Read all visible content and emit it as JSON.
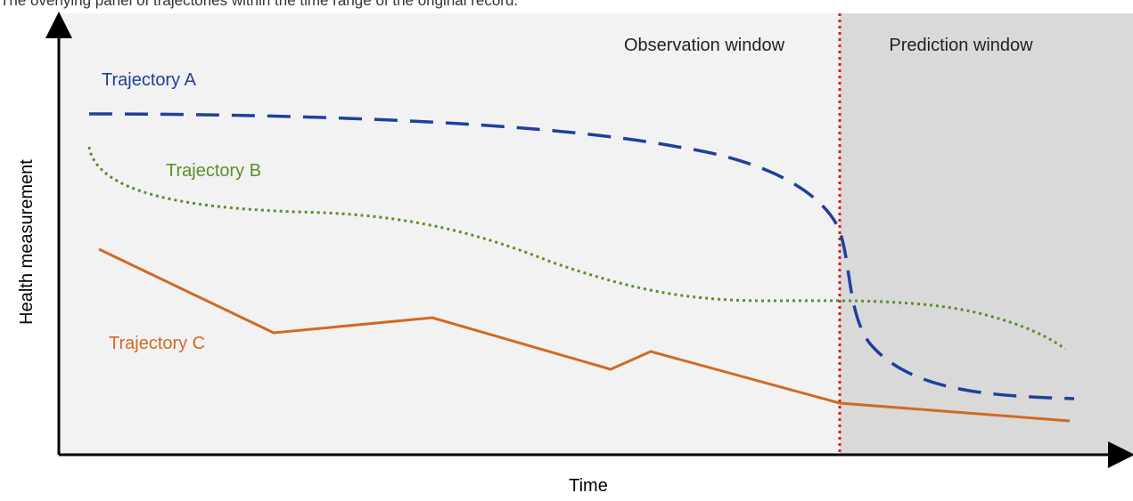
{
  "caption": "The overlying panel of trajectories within the time range of the original record.",
  "axes": {
    "x_label": "Time",
    "y_label": "Health measurement"
  },
  "windows": {
    "observation_label": "Observation window",
    "prediction_label": "Prediction window"
  },
  "trajectories": [
    {
      "key": "A",
      "label": "Trajectory A",
      "color": "#1f3f9a",
      "style": "dashed"
    },
    {
      "key": "B",
      "label": "Trajectory B",
      "color": "#5b8f2b",
      "style": "dotted"
    },
    {
      "key": "C",
      "label": "Trajectory C",
      "color": "#d06a23",
      "style": "solid"
    }
  ],
  "colors": {
    "observation_bg": "#f2f2f2",
    "prediction_bg": "#d9d9d9",
    "divider": "#d31f26",
    "axis": "#000000"
  }
}
